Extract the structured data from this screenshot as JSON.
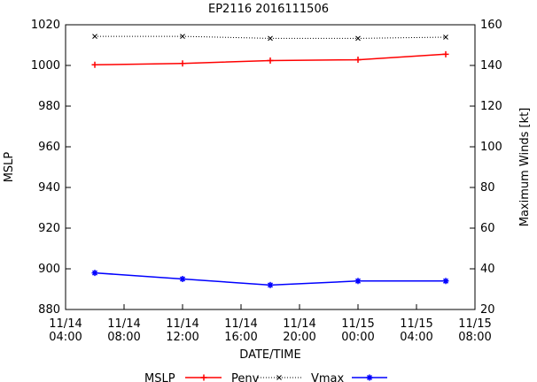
{
  "chart_data": {
    "type": "line",
    "title": "EP2116 2016111506",
    "xlabel": "DATE/TIME",
    "ylabel_left": "MSLP",
    "ylabel_right": "Maximum Winds [kt]",
    "x_hours": [
      6,
      12,
      18,
      24,
      30
    ],
    "x_range_hours": [
      4,
      32
    ],
    "x_ticks": [
      {
        "hour": 4,
        "line1": "11/14",
        "line2": "04:00"
      },
      {
        "hour": 8,
        "line1": "11/14",
        "line2": "08:00"
      },
      {
        "hour": 12,
        "line1": "11/14",
        "line2": "12:00"
      },
      {
        "hour": 16,
        "line1": "11/14",
        "line2": "16:00"
      },
      {
        "hour": 20,
        "line1": "11/14",
        "line2": "20:00"
      },
      {
        "hour": 24,
        "line1": "11/15",
        "line2": "00:00"
      },
      {
        "hour": 28,
        "line1": "11/15",
        "line2": "04:00"
      },
      {
        "hour": 32,
        "line1": "11/15",
        "line2": "08:00"
      }
    ],
    "y_left_range": [
      880,
      1020
    ],
    "y_left_ticks": [
      880,
      900,
      920,
      940,
      960,
      980,
      1000,
      1020
    ],
    "y_right_range": [
      20,
      160
    ],
    "y_right_ticks": [
      20,
      40,
      60,
      80,
      100,
      120,
      140,
      160
    ],
    "legend_title": "MSLP",
    "series": [
      {
        "name": "Penv",
        "axis": "left",
        "color": "#ff0000",
        "marker": "plus",
        "line": "solid",
        "values": [
          1000.3,
          1001.0,
          1002.4,
          1002.8,
          1005.5
        ]
      },
      {
        "name": "Vmax",
        "axis": "left",
        "color": "#000000",
        "marker": "x",
        "line": "dotted",
        "values": [
          1014.3,
          1014.3,
          1013.3,
          1013.3,
          1013.9
        ]
      },
      {
        "name": "",
        "axis": "left",
        "color": "#0000ff",
        "marker": "star",
        "line": "solid",
        "values": [
          898,
          895,
          892,
          894,
          894
        ]
      }
    ],
    "grid": false,
    "legend_position": "bottom"
  }
}
